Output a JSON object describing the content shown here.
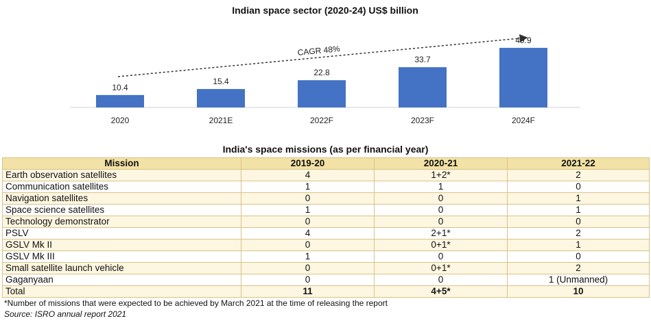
{
  "chart_data": {
    "type": "bar",
    "title": "Indian space sector (2020-24) US$ billion",
    "categories": [
      "2020",
      "2021E",
      "2022F",
      "2023F",
      "2024F"
    ],
    "values": [
      10.4,
      15.4,
      22.8,
      33.7,
      49.9
    ],
    "value_labels": [
      "10.4",
      "15.4",
      "22.8",
      "33.7",
      "49.9"
    ],
    "annotation": "CAGR 48%",
    "ylim": [
      0,
      55
    ],
    "colors": {
      "bar": "#4472c4"
    },
    "grid": false
  },
  "table": {
    "title": "India's space missions (as per financial year)",
    "headers": [
      "Mission",
      "2019-20",
      "2020-21",
      "2021-22"
    ],
    "rows": [
      [
        "Earth observation satellites",
        "4",
        "1+2*",
        "2"
      ],
      [
        "Communication satellites",
        "1",
        "1",
        "0"
      ],
      [
        "Navigation satellites",
        "0",
        "0",
        "1"
      ],
      [
        "Space science satellites",
        "1",
        "0",
        "1"
      ],
      [
        "Technology demonstrator",
        "0",
        "0",
        "0"
      ],
      [
        "PSLV",
        "4",
        "2+1*",
        "2"
      ],
      [
        "GSLV Mk II",
        "0",
        "0+1*",
        "1"
      ],
      [
        "GSLV Mk III",
        "1",
        "0",
        "0"
      ],
      [
        "Small satellite launch vehicle",
        "0",
        "0+1*",
        "2"
      ],
      [
        "Gaganyaan",
        "0",
        "0",
        "1 (Unmanned)"
      ],
      [
        "Total",
        "11",
        "4+5*",
        "10"
      ]
    ]
  },
  "footnote": "*Number of missions that were expected to be achieved by March 2021 at the time of releasing the report",
  "source": "Source: ISRO annual report 2021"
}
